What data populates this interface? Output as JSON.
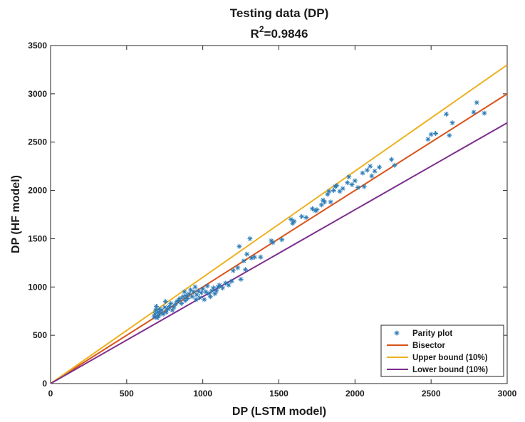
{
  "chart_data": {
    "type": "scatter",
    "title_line1": "Testing data (DP)",
    "title_line2_prefix": "R",
    "title_line2_sup": "2",
    "title_line2_suffix": "=0.9846",
    "xlabel": "DP (LSTM model)",
    "ylabel": "DP (HF model)",
    "xlim": [
      0,
      3000
    ],
    "ylim": [
      0,
      3500
    ],
    "xticks": [
      0,
      500,
      1000,
      1500,
      2000,
      2500,
      3000
    ],
    "yticks": [
      0,
      500,
      1000,
      1500,
      2000,
      2500,
      3000,
      3500
    ],
    "legend_position": "bottom-right",
    "series": [
      {
        "name": "Parity plot",
        "kind": "points",
        "marker": "*",
        "color": "#2a7ab5",
        "points": [
          [
            680,
            690
          ],
          [
            685,
            720
          ],
          [
            690,
            760
          ],
          [
            695,
            800
          ],
          [
            700,
            680
          ],
          [
            705,
            740
          ],
          [
            710,
            700
          ],
          [
            715,
            770
          ],
          [
            720,
            730
          ],
          [
            730,
            760
          ],
          [
            740,
            720
          ],
          [
            750,
            790
          ],
          [
            755,
            850
          ],
          [
            760,
            740
          ],
          [
            770,
            770
          ],
          [
            780,
            800
          ],
          [
            790,
            830
          ],
          [
            800,
            760
          ],
          [
            810,
            790
          ],
          [
            820,
            820
          ],
          [
            830,
            850
          ],
          [
            840,
            860
          ],
          [
            850,
            880
          ],
          [
            860,
            830
          ],
          [
            870,
            900
          ],
          [
            880,
            950
          ],
          [
            885,
            860
          ],
          [
            890,
            910
          ],
          [
            900,
            880
          ],
          [
            910,
            930
          ],
          [
            920,
            970
          ],
          [
            930,
            900
          ],
          [
            940,
            950
          ],
          [
            950,
            1000
          ],
          [
            955,
            870
          ],
          [
            960,
            920
          ],
          [
            970,
            960
          ],
          [
            980,
            890
          ],
          [
            990,
            940
          ],
          [
            1000,
            980
          ],
          [
            1010,
            870
          ],
          [
            1020,
            950
          ],
          [
            1030,
            1010
          ],
          [
            1040,
            930
          ],
          [
            1050,
            900
          ],
          [
            1060,
            960
          ],
          [
            1070,
            990
          ],
          [
            1080,
            930
          ],
          [
            1090,
            960
          ],
          [
            1100,
            1000
          ],
          [
            1110,
            1020
          ],
          [
            1130,
            990
          ],
          [
            1150,
            1040
          ],
          [
            1170,
            1020
          ],
          [
            1190,
            1060
          ],
          [
            1200,
            1170
          ],
          [
            1230,
            1200
          ],
          [
            1240,
            1420
          ],
          [
            1250,
            1080
          ],
          [
            1270,
            1270
          ],
          [
            1280,
            1180
          ],
          [
            1290,
            1340
          ],
          [
            1310,
            1500
          ],
          [
            1320,
            1300
          ],
          [
            1340,
            1310
          ],
          [
            1380,
            1310
          ],
          [
            1450,
            1480
          ],
          [
            1460,
            1460
          ],
          [
            1520,
            1490
          ],
          [
            1580,
            1700
          ],
          [
            1590,
            1660
          ],
          [
            1600,
            1680
          ],
          [
            1650,
            1730
          ],
          [
            1680,
            1720
          ],
          [
            1720,
            1810
          ],
          [
            1740,
            1790
          ],
          [
            1750,
            1800
          ],
          [
            1780,
            1850
          ],
          [
            1790,
            1900
          ],
          [
            1800,
            1880
          ],
          [
            1820,
            1960
          ],
          [
            1830,
            1990
          ],
          [
            1840,
            1880
          ],
          [
            1860,
            2000
          ],
          [
            1870,
            2040
          ],
          [
            1880,
            2050
          ],
          [
            1900,
            1990
          ],
          [
            1920,
            2020
          ],
          [
            1950,
            2080
          ],
          [
            1960,
            2140
          ],
          [
            1980,
            2060
          ],
          [
            2000,
            2100
          ],
          [
            2020,
            2030
          ],
          [
            2050,
            2180
          ],
          [
            2060,
            2040
          ],
          [
            2080,
            2210
          ],
          [
            2100,
            2250
          ],
          [
            2110,
            2150
          ],
          [
            2130,
            2200
          ],
          [
            2160,
            2240
          ],
          [
            2240,
            2320
          ],
          [
            2260,
            2260
          ],
          [
            2480,
            2530
          ],
          [
            2500,
            2580
          ],
          [
            2530,
            2590
          ],
          [
            2600,
            2790
          ],
          [
            2620,
            2570
          ],
          [
            2640,
            2700
          ],
          [
            2780,
            2810
          ],
          [
            2800,
            2910
          ],
          [
            2850,
            2800
          ]
        ]
      },
      {
        "name": "Bisector",
        "kind": "line",
        "color": "#d95319",
        "x": [
          0,
          3000
        ],
        "y": [
          0,
          3000
        ]
      },
      {
        "name": "Upper bound (10%)",
        "kind": "line",
        "color": "#edb120",
        "x": [
          0,
          3000
        ],
        "y": [
          0,
          3300
        ]
      },
      {
        "name": "Lower bound (10%)",
        "kind": "line",
        "color": "#7e2f8e",
        "x": [
          0,
          3000
        ],
        "y": [
          0,
          2700
        ]
      }
    ]
  }
}
